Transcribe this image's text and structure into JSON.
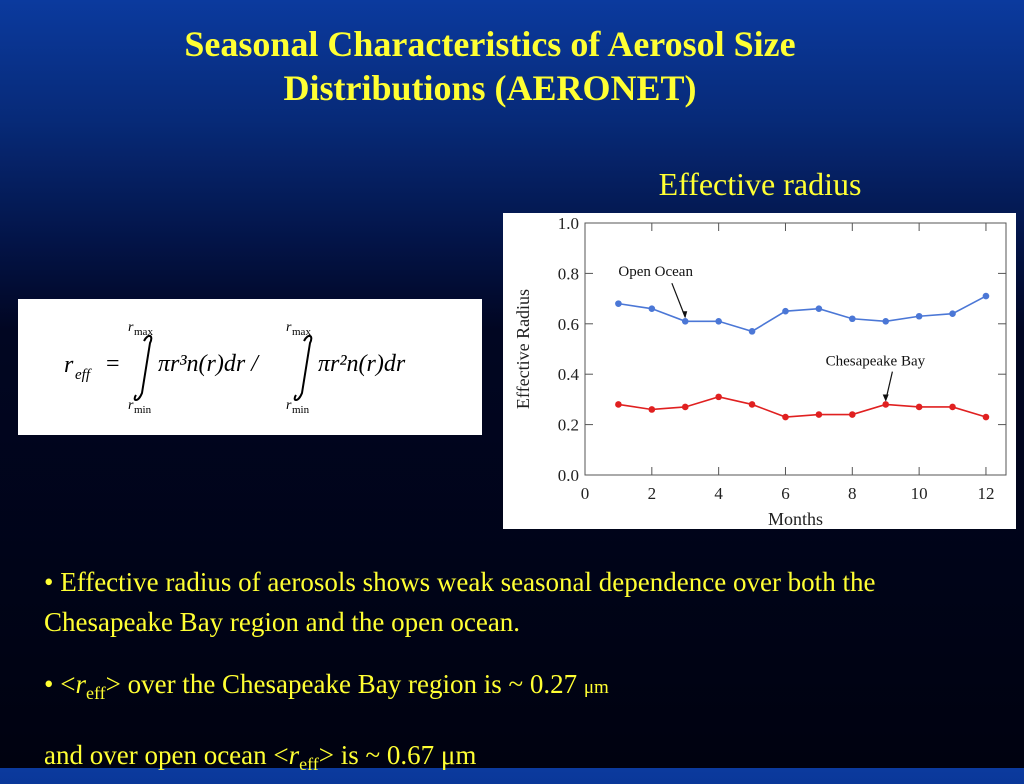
{
  "slide": {
    "title_line1": "Seasonal Characteristics of Aerosol Size",
    "title_line2": "Distributions (AERONET)",
    "chart_caption": "Effective radius"
  },
  "formula": {
    "lhs": "r",
    "lhs_sub": "eff",
    "eq": "=",
    "int_upper": "r",
    "int_upper_sub": "max",
    "int_lower": "r",
    "int_lower_sub": "min",
    "integrand1": "πr³n(r)dr /",
    "integrand2": "πr²n(r)dr"
  },
  "bullets": {
    "b1": "• Effective radius of aerosols shows weak seasonal dependence over both the Chesapeake Bay region and the open ocean.",
    "b2_prefix": "• <",
    "b2_r": "r",
    "b2_sub": "eff",
    "b2_rest": "> over the Chesapeake Bay region is ~ 0.27 ",
    "b2_unit": "μm",
    "b3_prefix": "and over open ocean <",
    "b3_r": "r",
    "b3_sub": "eff",
    "b3_rest": "> is ~ 0.67 μm"
  },
  "colors": {
    "title": "#ffff33",
    "open_ocean": "#4b77d6",
    "chesapeake": "#e02020"
  },
  "chart_data": {
    "type": "line",
    "title": "",
    "xlabel": "Months",
    "ylabel": "Effective Radius",
    "xlim": [
      0,
      12.6
    ],
    "ylim": [
      0,
      1.0
    ],
    "xticks": [
      0,
      2,
      4,
      6,
      8,
      10,
      12
    ],
    "yticks": [
      0.0,
      0.2,
      0.4,
      0.6,
      0.8,
      1.0
    ],
    "ytick_labels": [
      "0.0",
      "0.2",
      "0.4",
      "0.6",
      "0.8",
      "1.0"
    ],
    "x": [
      1,
      2,
      3,
      4,
      5,
      6,
      7,
      8,
      9,
      10,
      11,
      12
    ],
    "series": [
      {
        "name": "Open Ocean",
        "color": "#4b77d6",
        "values": [
          0.68,
          0.66,
          0.61,
          0.61,
          0.57,
          0.65,
          0.66,
          0.62,
          0.61,
          0.63,
          0.64,
          0.71
        ]
      },
      {
        "name": "Chesapeake Bay",
        "color": "#e02020",
        "values": [
          0.28,
          0.26,
          0.27,
          0.31,
          0.28,
          0.23,
          0.24,
          0.24,
          0.28,
          0.27,
          0.27,
          0.23
        ]
      }
    ],
    "annotations": [
      {
        "text": "Open Ocean",
        "points_to_series": 0,
        "x": 3
      },
      {
        "text": "Chesapeake Bay",
        "points_to_series": 1,
        "x": 9
      }
    ],
    "grid": false
  }
}
